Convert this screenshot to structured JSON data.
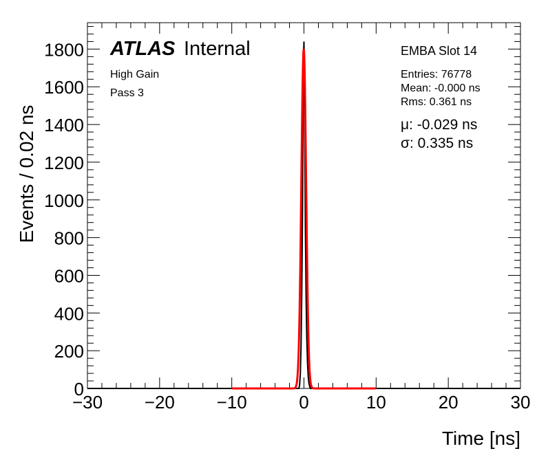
{
  "chart_data": {
    "type": "line",
    "xlabel": "Time [ns]",
    "ylabel": "Events / 0.02 ns",
    "xlim": [
      -30,
      30
    ],
    "ylim": [
      0,
      1940
    ],
    "x_ticks": [
      -30,
      -20,
      -10,
      0,
      10,
      20,
      30
    ],
    "x_tick_labels": [
      "−30",
      "−20",
      "−10",
      "0",
      "10",
      "20",
      "30"
    ],
    "y_ticks": [
      0,
      200,
      400,
      600,
      800,
      1000,
      1200,
      1400,
      1600,
      1800
    ],
    "y_tick_labels": [
      "0",
      "200",
      "400",
      "600",
      "800",
      "1000",
      "1200",
      "1400",
      "1600",
      "1800"
    ],
    "grid": false,
    "histogram": {
      "color": "#000000",
      "bin_width": 0.02,
      "x": [
        -0.6,
        -0.5,
        -0.4,
        -0.3,
        -0.2,
        -0.15,
        -0.1,
        -0.05,
        0.0,
        0.05,
        0.1,
        0.15,
        0.2,
        0.3,
        0.4,
        0.5,
        0.6,
        0.7,
        0.8
      ],
      "values": [
        20,
        80,
        230,
        520,
        950,
        1250,
        1560,
        1760,
        1840,
        1700,
        1450,
        1150,
        850,
        480,
        260,
        130,
        60,
        25,
        10
      ]
    },
    "fit": {
      "color": "#ff0000",
      "function": "gaussian",
      "x_range": [
        -10,
        10
      ],
      "amplitude": 1800,
      "mean": -0.029,
      "sigma": 0.335
    }
  },
  "labels": {
    "atlas_bold": "ATLAS",
    "atlas_rest": "Internal",
    "gain": "High Gain",
    "pass": "Pass 3",
    "module": "EMBA Slot 14",
    "entries": "Entries: 76778",
    "mean": "Mean: -0.000 ns",
    "rms": "Rms: 0.361 ns",
    "mu": "μ: -0.029 ns",
    "sigma": "σ: 0.335 ns"
  }
}
